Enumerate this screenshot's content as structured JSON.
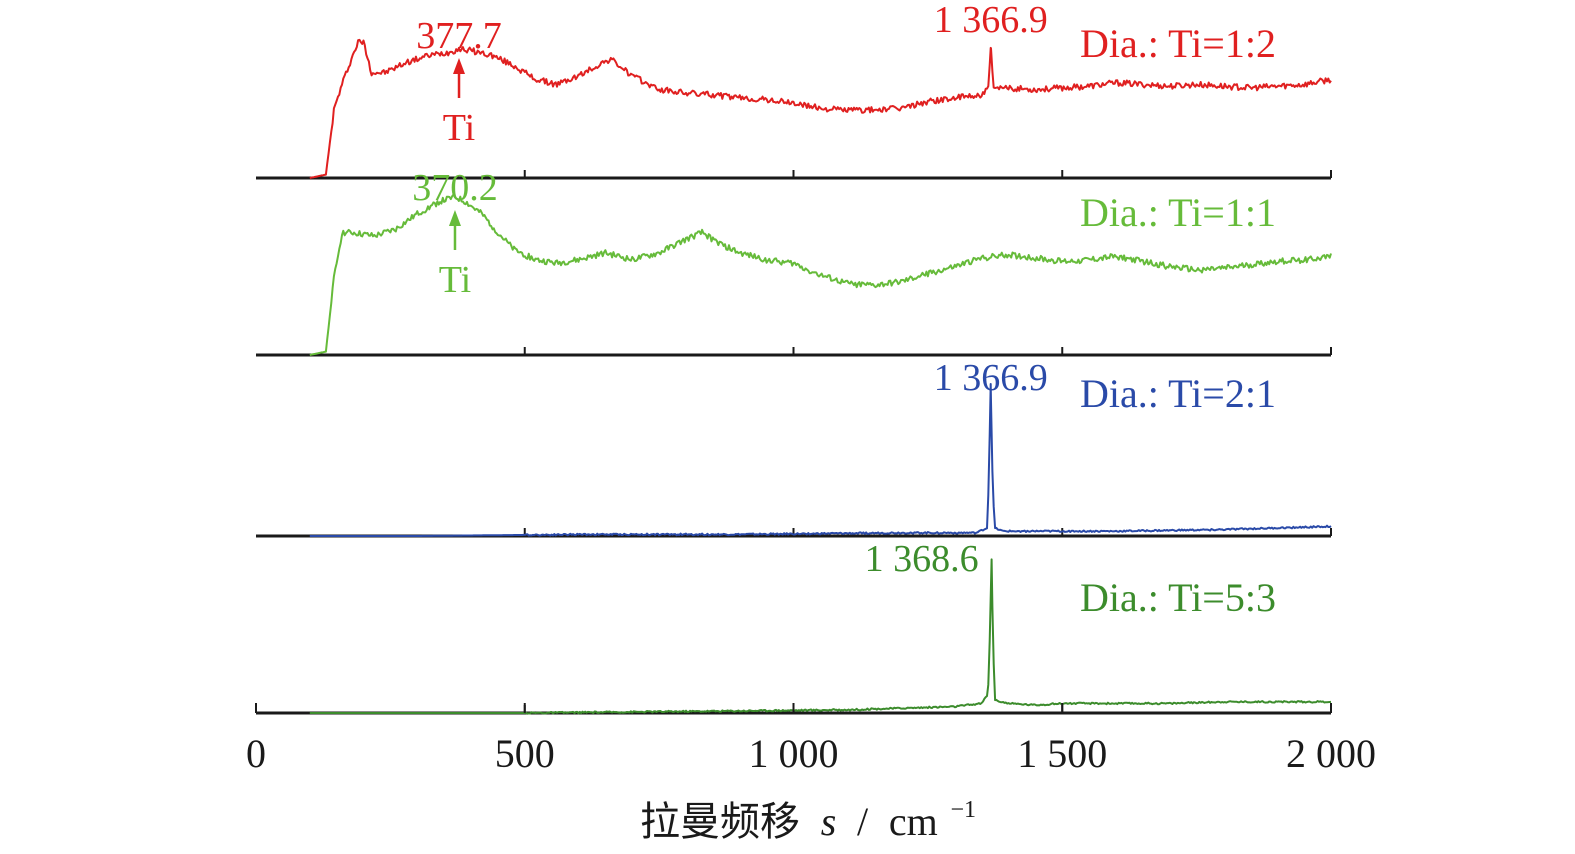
{
  "chart_data": {
    "type": "line",
    "title": "",
    "xlabel": {
      "prefix": "拉曼频移",
      "symbol": "s",
      "separator": "/",
      "unit": "cm",
      "exponent": "−1"
    },
    "ylabel": "",
    "xlim": [
      0,
      2000
    ],
    "xticks": [
      {
        "value": 0,
        "label": "0"
      },
      {
        "value": 500,
        "label": "500"
      },
      {
        "value": 1000,
        "label": "1 000"
      },
      {
        "value": 1500,
        "label": "1 500"
      },
      {
        "value": 2000,
        "label": "2 000"
      }
    ],
    "grid": false,
    "legend_placement": "top-right of each panel",
    "series": [
      {
        "name": "Dia.: Ti=1:2",
        "color": "#e02020",
        "points": [
          [
            100,
            0.0
          ],
          [
            130,
            0.02
          ],
          [
            145,
            0.4
          ],
          [
            160,
            0.55
          ],
          [
            175,
            0.68
          ],
          [
            190,
            0.8
          ],
          [
            200,
            0.8
          ],
          [
            215,
            0.62
          ],
          [
            240,
            0.62
          ],
          [
            280,
            0.68
          ],
          [
            320,
            0.72
          ],
          [
            360,
            0.74
          ],
          [
            378,
            0.76
          ],
          [
            400,
            0.75
          ],
          [
            440,
            0.72
          ],
          [
            480,
            0.66
          ],
          [
            520,
            0.58
          ],
          [
            560,
            0.55
          ],
          [
            600,
            0.6
          ],
          [
            640,
            0.67
          ],
          [
            660,
            0.7
          ],
          [
            700,
            0.6
          ],
          [
            750,
            0.52
          ],
          [
            800,
            0.5
          ],
          [
            850,
            0.49
          ],
          [
            900,
            0.47
          ],
          [
            950,
            0.46
          ],
          [
            1000,
            0.44
          ],
          [
            1050,
            0.41
          ],
          [
            1100,
            0.4
          ],
          [
            1150,
            0.4
          ],
          [
            1200,
            0.41
          ],
          [
            1250,
            0.45
          ],
          [
            1300,
            0.47
          ],
          [
            1350,
            0.49
          ],
          [
            1362,
            0.52
          ],
          [
            1367,
            0.77
          ],
          [
            1372,
            0.52
          ],
          [
            1400,
            0.53
          ],
          [
            1450,
            0.52
          ],
          [
            1500,
            0.53
          ],
          [
            1550,
            0.54
          ],
          [
            1600,
            0.56
          ],
          [
            1650,
            0.55
          ],
          [
            1700,
            0.54
          ],
          [
            1750,
            0.55
          ],
          [
            1800,
            0.54
          ],
          [
            1850,
            0.53
          ],
          [
            1900,
            0.54
          ],
          [
            1950,
            0.55
          ],
          [
            2000,
            0.58
          ]
        ],
        "peaks": [
          {
            "x": 377.7,
            "label": "377.7",
            "marker": "Ti"
          },
          {
            "x": 1366.9,
            "label": "1 366.9"
          }
        ]
      },
      {
        "name": "Dia.: Ti=1:1",
        "color": "#66bb3a",
        "points": [
          [
            100,
            0.0
          ],
          [
            130,
            0.02
          ],
          [
            145,
            0.45
          ],
          [
            160,
            0.72
          ],
          [
            180,
            0.72
          ],
          [
            220,
            0.7
          ],
          [
            260,
            0.74
          ],
          [
            300,
            0.83
          ],
          [
            340,
            0.9
          ],
          [
            370,
            0.93
          ],
          [
            390,
            0.9
          ],
          [
            420,
            0.83
          ],
          [
            450,
            0.72
          ],
          [
            480,
            0.62
          ],
          [
            520,
            0.56
          ],
          [
            560,
            0.54
          ],
          [
            600,
            0.56
          ],
          [
            650,
            0.6
          ],
          [
            700,
            0.56
          ],
          [
            750,
            0.6
          ],
          [
            800,
            0.68
          ],
          [
            830,
            0.72
          ],
          [
            860,
            0.66
          ],
          [
            900,
            0.6
          ],
          [
            950,
            0.56
          ],
          [
            1000,
            0.54
          ],
          [
            1050,
            0.47
          ],
          [
            1100,
            0.42
          ],
          [
            1150,
            0.41
          ],
          [
            1200,
            0.43
          ],
          [
            1250,
            0.48
          ],
          [
            1300,
            0.52
          ],
          [
            1350,
            0.57
          ],
          [
            1400,
            0.59
          ],
          [
            1450,
            0.57
          ],
          [
            1500,
            0.55
          ],
          [
            1550,
            0.56
          ],
          [
            1600,
            0.58
          ],
          [
            1650,
            0.55
          ],
          [
            1700,
            0.52
          ],
          [
            1750,
            0.5
          ],
          [
            1800,
            0.51
          ],
          [
            1850,
            0.53
          ],
          [
            1900,
            0.55
          ],
          [
            1950,
            0.56
          ],
          [
            2000,
            0.58
          ]
        ],
        "peaks": [
          {
            "x": 370.2,
            "label": "370.2",
            "marker": "Ti"
          }
        ]
      },
      {
        "name": "Dia.: Ti=2:1",
        "color": "#2a4aa8",
        "points": [
          [
            100,
            0.0
          ],
          [
            300,
            0.0
          ],
          [
            600,
            0.01
          ],
          [
            900,
            0.01
          ],
          [
            1200,
            0.02
          ],
          [
            1340,
            0.02
          ],
          [
            1360,
            0.05
          ],
          [
            1363,
            0.3
          ],
          [
            1366.9,
            0.95
          ],
          [
            1370,
            0.4
          ],
          [
            1374,
            0.05
          ],
          [
            1390,
            0.03
          ],
          [
            1600,
            0.03
          ],
          [
            1800,
            0.04
          ],
          [
            2000,
            0.06
          ]
        ],
        "peaks": [
          {
            "x": 1366.9,
            "label": "1 366.9"
          }
        ]
      },
      {
        "name": "Dia.: Ti=5:3",
        "color": "#3c8c2c",
        "points": [
          [
            100,
            0.0
          ],
          [
            500,
            0.0
          ],
          [
            800,
            0.01
          ],
          [
            1100,
            0.02
          ],
          [
            1300,
            0.04
          ],
          [
            1350,
            0.06
          ],
          [
            1362,
            0.12
          ],
          [
            1365,
            0.45
          ],
          [
            1368.6,
            0.96
          ],
          [
            1371,
            0.45
          ],
          [
            1375,
            0.08
          ],
          [
            1400,
            0.06
          ],
          [
            1450,
            0.05
          ],
          [
            1500,
            0.06
          ],
          [
            1600,
            0.06
          ],
          [
            1700,
            0.06
          ],
          [
            1800,
            0.07
          ],
          [
            2000,
            0.07
          ]
        ],
        "peaks": [
          {
            "x": 1368.6,
            "label": "1 368.6"
          }
        ]
      }
    ]
  }
}
